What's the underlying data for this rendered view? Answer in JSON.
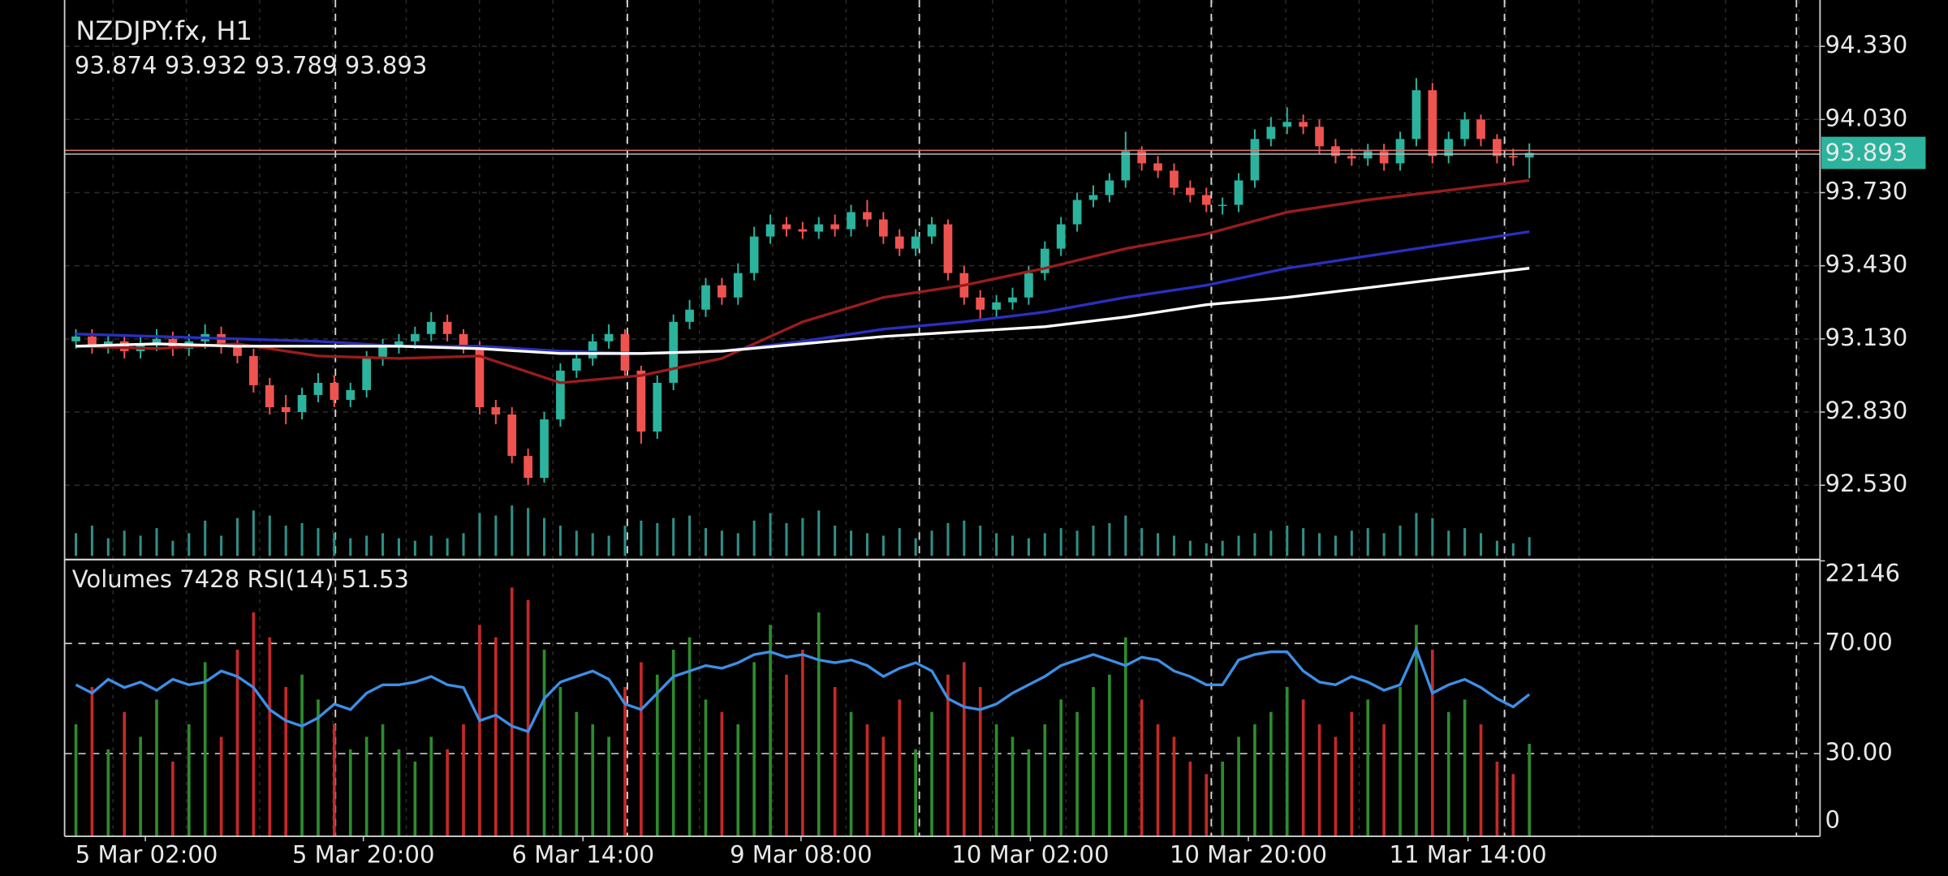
{
  "chart_data": {
    "type": "candlestick",
    "title": "NZDJPY.fx, H1",
    "ohlc_label": "93.874 93.932 93.789 93.893",
    "indicator_label": "Volumes 7428 RSI(14) 51.53",
    "up_color": "#2bb39d",
    "down_color": "#ef5350",
    "volume_up_color": "#2e8b2e",
    "volume_down_color": "#c62828",
    "tick_volume_color": "#2f8f86",
    "rsi_color": "#3d8fe6",
    "grid": true,
    "xlim": [
      -0.7,
      108
    ],
    "xticks": [
      {
        "value": 4.3,
        "label": "5 Mar 02:00"
      },
      {
        "value": 17.8,
        "label": "5 Mar 20:00"
      },
      {
        "value": 31.4,
        "label": "6 Mar 14:00"
      },
      {
        "value": 44.9,
        "label": "9 Mar 08:00"
      },
      {
        "value": 59.1,
        "label": "10 Mar 02:00"
      },
      {
        "value": 72.6,
        "label": "10 Mar 20:00"
      },
      {
        "value": 86.2,
        "label": "11 Mar 14:00"
      }
    ],
    "ylim": [
      92.23,
      94.52
    ],
    "yticks": [
      {
        "value": 94.33,
        "label": "94.330"
      },
      {
        "value": 94.03,
        "label": "94.030"
      },
      {
        "value": 93.73,
        "label": "93.730"
      },
      {
        "value": 93.43,
        "label": "93.430"
      },
      {
        "value": 93.13,
        "label": "93.130"
      },
      {
        "value": 92.83,
        "label": "92.830"
      },
      {
        "value": 92.53,
        "label": "92.530"
      }
    ],
    "last_price": 93.893,
    "open": [
      93.12,
      93.14,
      93.1,
      93.12,
      93.08,
      93.11,
      93.13,
      93.09,
      93.12,
      93.15,
      93.1,
      93.06,
      92.94,
      92.85,
      92.83,
      92.9,
      92.95,
      92.88,
      92.92,
      93.05,
      93.1,
      93.12,
      93.15,
      93.2,
      93.15,
      93.1,
      92.85,
      92.82,
      92.65,
      92.56,
      92.8,
      93.0,
      93.05,
      93.12,
      93.15,
      93.0,
      92.75,
      92.95,
      93.2,
      93.25,
      93.35,
      93.3,
      93.4,
      93.55,
      93.6,
      93.58,
      93.57,
      93.6,
      93.58,
      93.65,
      93.62,
      93.55,
      93.5,
      93.55,
      93.6,
      93.4,
      93.3,
      93.25,
      93.28,
      93.3,
      93.4,
      93.5,
      93.6,
      93.7,
      93.72,
      93.78,
      93.9,
      93.85,
      93.82,
      93.75,
      93.72,
      93.68,
      93.68,
      93.78,
      93.95,
      94.0,
      94.02,
      94.0,
      93.92,
      93.88,
      93.87,
      93.9,
      93.85,
      93.95,
      94.15,
      93.88,
      93.95,
      94.03,
      93.95,
      93.88,
      93.874
    ],
    "high": [
      93.17,
      93.17,
      93.15,
      93.15,
      93.14,
      93.17,
      93.16,
      93.15,
      93.19,
      93.18,
      93.13,
      93.09,
      92.97,
      92.9,
      92.93,
      92.99,
      92.98,
      92.95,
      93.08,
      93.13,
      93.15,
      93.18,
      93.24,
      93.23,
      93.17,
      93.12,
      92.88,
      92.85,
      92.68,
      92.83,
      93.03,
      93.08,
      93.15,
      93.19,
      93.17,
      93.02,
      92.98,
      93.23,
      93.29,
      93.38,
      93.38,
      93.44,
      93.59,
      93.64,
      93.63,
      93.61,
      93.63,
      93.64,
      93.68,
      93.7,
      93.65,
      93.58,
      93.58,
      93.63,
      93.62,
      93.43,
      93.33,
      93.31,
      93.34,
      93.43,
      93.53,
      93.63,
      93.73,
      93.76,
      93.81,
      93.98,
      93.92,
      93.88,
      93.85,
      93.78,
      93.75,
      93.71,
      93.81,
      93.99,
      94.04,
      94.08,
      94.05,
      94.03,
      93.95,
      93.91,
      93.93,
      93.93,
      93.98,
      94.2,
      94.18,
      93.98,
      94.06,
      94.05,
      93.97,
      93.91,
      93.932
    ],
    "low": [
      93.09,
      93.07,
      93.07,
      93.05,
      93.05,
      93.08,
      93.06,
      93.06,
      93.09,
      93.07,
      93.03,
      92.91,
      92.82,
      92.78,
      92.8,
      92.87,
      92.85,
      92.85,
      92.89,
      93.02,
      93.07,
      93.09,
      93.12,
      93.12,
      93.07,
      92.82,
      92.78,
      92.62,
      92.53,
      92.54,
      92.77,
      92.97,
      93.02,
      93.09,
      92.97,
      92.7,
      92.72,
      92.92,
      93.17,
      93.22,
      93.27,
      93.27,
      93.37,
      93.52,
      93.55,
      93.54,
      93.54,
      93.55,
      93.55,
      93.59,
      93.52,
      93.47,
      93.47,
      93.52,
      93.37,
      93.27,
      93.21,
      93.22,
      93.25,
      93.27,
      93.37,
      93.47,
      93.57,
      93.67,
      93.69,
      93.75,
      93.82,
      93.79,
      93.72,
      93.69,
      93.65,
      93.64,
      93.65,
      93.75,
      93.92,
      93.97,
      93.97,
      93.89,
      93.85,
      93.84,
      93.84,
      93.82,
      93.82,
      93.92,
      93.85,
      93.85,
      93.92,
      93.92,
      93.85,
      93.84,
      93.789
    ],
    "close": [
      93.14,
      93.1,
      93.12,
      93.08,
      93.11,
      93.13,
      93.09,
      93.12,
      93.15,
      93.1,
      93.06,
      92.94,
      92.85,
      92.83,
      92.9,
      92.95,
      92.88,
      92.92,
      93.05,
      93.1,
      93.12,
      93.15,
      93.2,
      93.15,
      93.1,
      92.85,
      92.82,
      92.65,
      92.56,
      92.8,
      93.0,
      93.05,
      93.12,
      93.15,
      93.0,
      92.75,
      92.95,
      93.2,
      93.25,
      93.35,
      93.3,
      93.4,
      93.55,
      93.6,
      93.58,
      93.57,
      93.6,
      93.58,
      93.65,
      93.62,
      93.55,
      93.5,
      93.55,
      93.6,
      93.4,
      93.3,
      93.25,
      93.28,
      93.3,
      93.4,
      93.5,
      93.6,
      93.7,
      93.72,
      93.78,
      93.9,
      93.85,
      93.82,
      93.75,
      93.72,
      93.68,
      93.68,
      93.78,
      93.95,
      94.0,
      94.02,
      94.0,
      93.92,
      93.88,
      93.87,
      93.9,
      93.85,
      93.95,
      94.15,
      93.88,
      93.95,
      94.03,
      93.95,
      93.88,
      93.874,
      93.893
    ],
    "ma_x": [
      0,
      5,
      10,
      15,
      20,
      25,
      30,
      35,
      40,
      45,
      50,
      55,
      60,
      65,
      70,
      75,
      80,
      85,
      90
    ],
    "moving_averages": [
      {
        "color": "#9b1c1c",
        "values": [
          93.1,
          93.09,
          93.11,
          93.06,
          93.05,
          93.06,
          92.95,
          92.98,
          93.05,
          93.2,
          93.3,
          93.35,
          93.42,
          93.5,
          93.56,
          93.65,
          93.7,
          93.74,
          93.78
        ]
      },
      {
        "color": "#2a2fc0",
        "values": [
          93.15,
          93.14,
          93.13,
          93.12,
          93.1,
          93.1,
          93.08,
          93.07,
          93.08,
          93.12,
          93.17,
          93.2,
          93.24,
          93.3,
          93.35,
          93.42,
          93.47,
          93.52,
          93.57
        ]
      },
      {
        "color": "#ffffff",
        "values": [
          93.1,
          93.11,
          93.1,
          93.1,
          93.1,
          93.09,
          93.07,
          93.07,
          93.08,
          93.11,
          93.14,
          93.16,
          93.18,
          93.22,
          93.27,
          93.3,
          93.34,
          93.38,
          93.42
        ]
      }
    ],
    "volumes": [
      9000,
      12000,
      7000,
      10000,
      8000,
      11000,
      6000,
      9000,
      14000,
      8000,
      15000,
      18000,
      16000,
      12000,
      13000,
      11000,
      9000,
      7000,
      8000,
      9000,
      7000,
      6000,
      8000,
      7000,
      9000,
      17000,
      16000,
      20000,
      19000,
      15000,
      12000,
      10000,
      9000,
      8000,
      12000,
      14000,
      13000,
      15000,
      16000,
      11000,
      10000,
      9000,
      14000,
      17000,
      13000,
      15000,
      18000,
      12000,
      10000,
      9000,
      8000,
      11000,
      7000,
      10000,
      13000,
      14000,
      12000,
      9000,
      8000,
      7000,
      9000,
      11000,
      10000,
      12000,
      13000,
      16000,
      11000,
      9000,
      8000,
      6000,
      5000,
      6000,
      8000,
      9000,
      10000,
      12000,
      11000,
      9000,
      8000,
      10000,
      11000,
      9000,
      12000,
      17000,
      15000,
      10000,
      11000,
      9000,
      6000,
      5000,
      7428
    ],
    "volume_ylim": [
      0,
      22146
    ],
    "volume_yticks": [
      22146
    ],
    "rsi": [
      55,
      52,
      57,
      54,
      56,
      53,
      57,
      55,
      56,
      60,
      58,
      54,
      46,
      42,
      40,
      43,
      48,
      46,
      52,
      55,
      55,
      56,
      58,
      55,
      54,
      42,
      44,
      40,
      38,
      50,
      56,
      58,
      60,
      57,
      48,
      46,
      52,
      58,
      60,
      62,
      61,
      63,
      66,
      67,
      65,
      66,
      64,
      63,
      64,
      62,
      58,
      61,
      63,
      60,
      50,
      47,
      46,
      48,
      52,
      55,
      58,
      62,
      64,
      66,
      64,
      62,
      65,
      64,
      60,
      58,
      55,
      55,
      64,
      66,
      67,
      67,
      60,
      56,
      55,
      58,
      56,
      53,
      55,
      68,
      52,
      55,
      57,
      54,
      50,
      47,
      51.53
    ],
    "rsi_ylim": [
      0,
      100
    ],
    "rsi_yticks": [
      {
        "value": 70,
        "label": "70.00"
      },
      {
        "value": 30,
        "label": "30.00"
      },
      0
    ]
  }
}
